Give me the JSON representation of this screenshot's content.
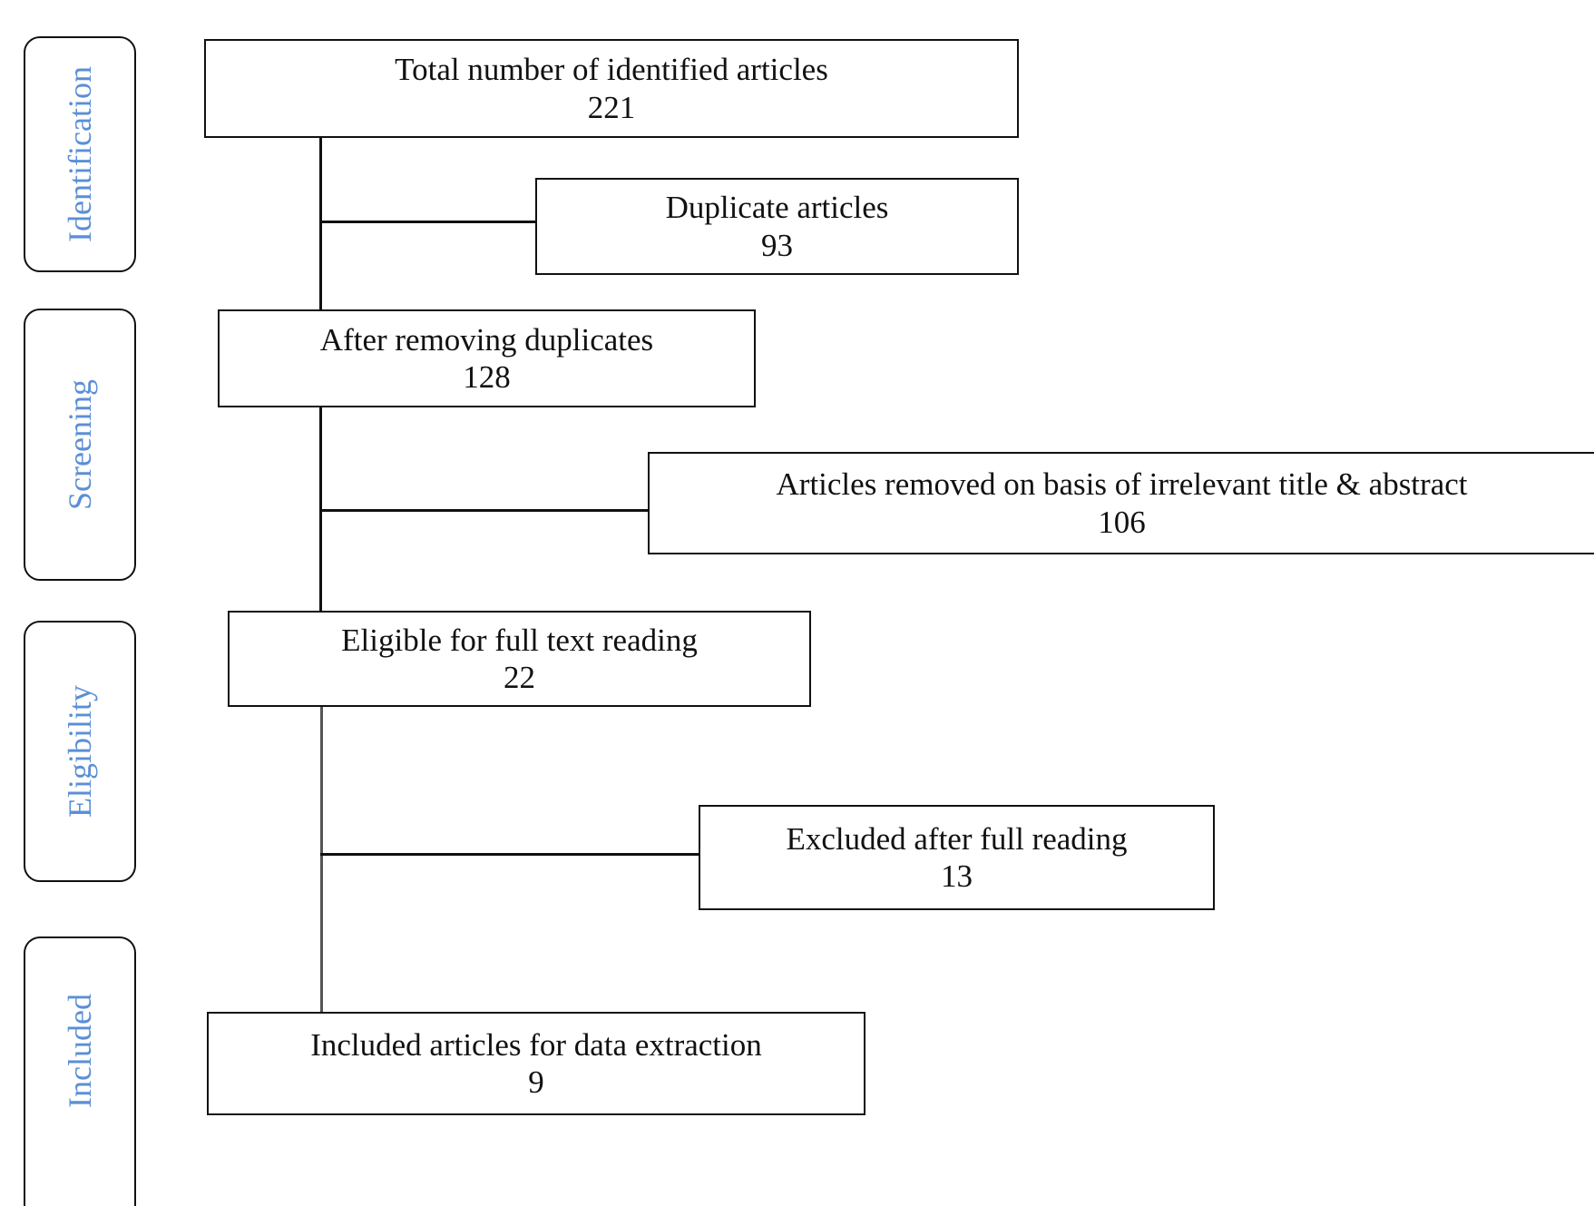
{
  "stages": {
    "identification": "Identification",
    "screening": "Screening",
    "eligibility": "Eligibility",
    "included": "Included"
  },
  "boxes": {
    "identified": {
      "label": "Total number of identified articles",
      "count": "221"
    },
    "duplicates": {
      "label": "Duplicate articles",
      "count": "93"
    },
    "after_duplicates": {
      "label": "After removing duplicates",
      "count": "128"
    },
    "removed_title_abstract": {
      "label": "Articles removed on basis of irrelevant title & abstract",
      "count": "106"
    },
    "eligible": {
      "label": "Eligible for full text reading",
      "count": "22"
    },
    "excluded_full": {
      "label": "Excluded after full reading",
      "count": "13"
    },
    "included": {
      "label": "Included articles for data extraction",
      "count": "9"
    }
  },
  "colors": {
    "stage_text": "#5b8fd6",
    "line": "#111111"
  }
}
